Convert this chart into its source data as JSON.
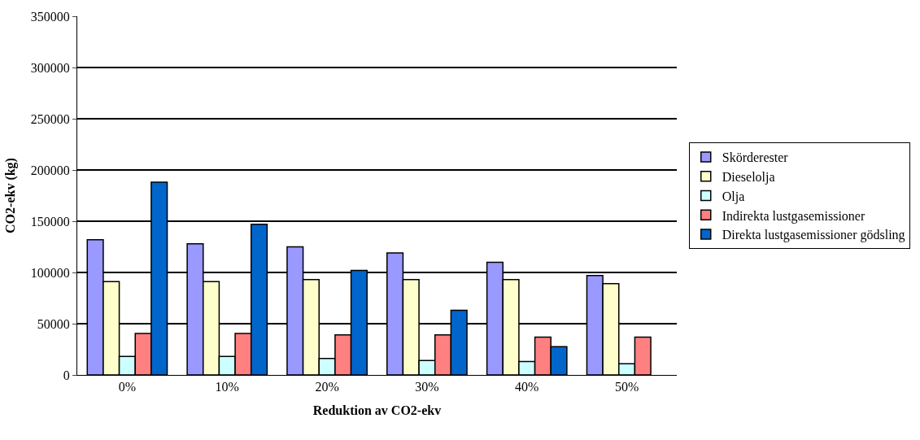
{
  "chart_data": {
    "type": "bar",
    "xlabel": "Reduktion av CO2-ekv",
    "ylabel": "CO2-ekv (kg)",
    "categories": [
      "0%",
      "10%",
      "20%",
      "30%",
      "40%",
      "50%"
    ],
    "ylim": [
      0,
      350000
    ],
    "yticks": [
      0,
      50000,
      100000,
      150000,
      200000,
      250000,
      300000,
      350000
    ],
    "grid": "y",
    "legend": "right",
    "series": [
      {
        "name": "Skörderester",
        "color": "#9999ff",
        "values": [
          132000,
          128000,
          125000,
          119000,
          110000,
          97000
        ]
      },
      {
        "name": "Dieselolja",
        "color": "#ffffcc",
        "values": [
          91000,
          91000,
          93000,
          93000,
          93000,
          89000
        ]
      },
      {
        "name": "Olja",
        "color": "#ccffff",
        "values": [
          18000,
          18000,
          16000,
          14000,
          13000,
          11000
        ]
      },
      {
        "name": "Indirekta lustgasemissioner",
        "color": "#ff8080",
        "values": [
          40500,
          40500,
          39000,
          39000,
          37000,
          37000
        ]
      },
      {
        "name": "Direkta lustgasemissioner gödsling",
        "color": "#0066cc",
        "values": [
          188000,
          147000,
          102000,
          63000,
          27500,
          null
        ]
      }
    ]
  }
}
